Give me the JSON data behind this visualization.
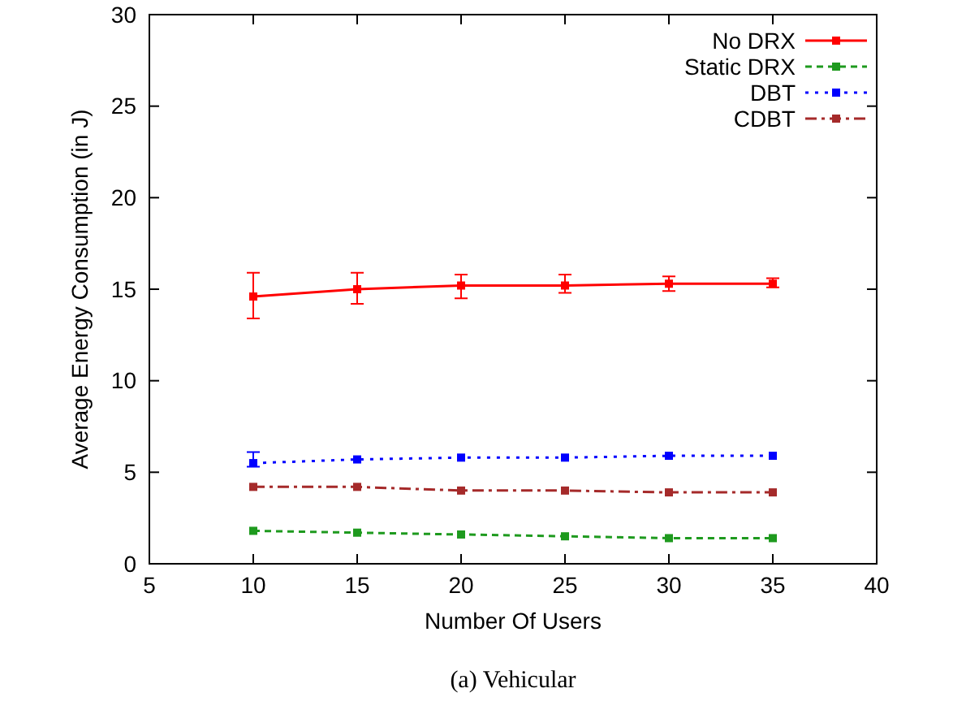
{
  "chart_data": {
    "type": "line",
    "title": "(a) Vehicular",
    "xlabel": "Number Of Users",
    "ylabel": "Average Energy Consumption (in J)",
    "x": [
      10,
      15,
      20,
      25,
      30,
      35
    ],
    "xlim": [
      5,
      40
    ],
    "xticks": [
      5,
      10,
      15,
      20,
      25,
      30,
      35,
      40
    ],
    "ylim": [
      0,
      30
    ],
    "yticks": [
      0,
      5,
      10,
      15,
      20,
      25,
      30
    ],
    "grid": false,
    "legend": "top right",
    "marker": "square",
    "series": [
      {
        "name": "No DRX",
        "color": "#ff0000",
        "line_style": "solid",
        "values": [
          14.6,
          15.0,
          15.2,
          15.2,
          15.3,
          15.3
        ],
        "errors": [
          [
            13.4,
            15.9
          ],
          [
            14.2,
            15.9
          ],
          [
            14.5,
            15.8
          ],
          [
            14.8,
            15.8
          ],
          [
            14.9,
            15.7
          ],
          [
            15.1,
            15.6
          ]
        ]
      },
      {
        "name": "Static DRX",
        "color": "#1e9a1e",
        "line_style": "dashed",
        "values": [
          1.8,
          1.7,
          1.6,
          1.5,
          1.4,
          1.4
        ]
      },
      {
        "name": "DBT",
        "color": "#0000ff",
        "line_style": "dotted",
        "values": [
          5.5,
          5.7,
          5.8,
          5.8,
          5.9,
          5.9
        ],
        "errors": [
          [
            5.3,
            6.1
          ],
          null,
          null,
          null,
          null,
          null
        ]
      },
      {
        "name": "CDBT",
        "color": "#a52a2a",
        "line_style": "dashdot",
        "values": [
          4.2,
          4.2,
          4.0,
          4.0,
          3.9,
          3.9
        ]
      }
    ]
  }
}
